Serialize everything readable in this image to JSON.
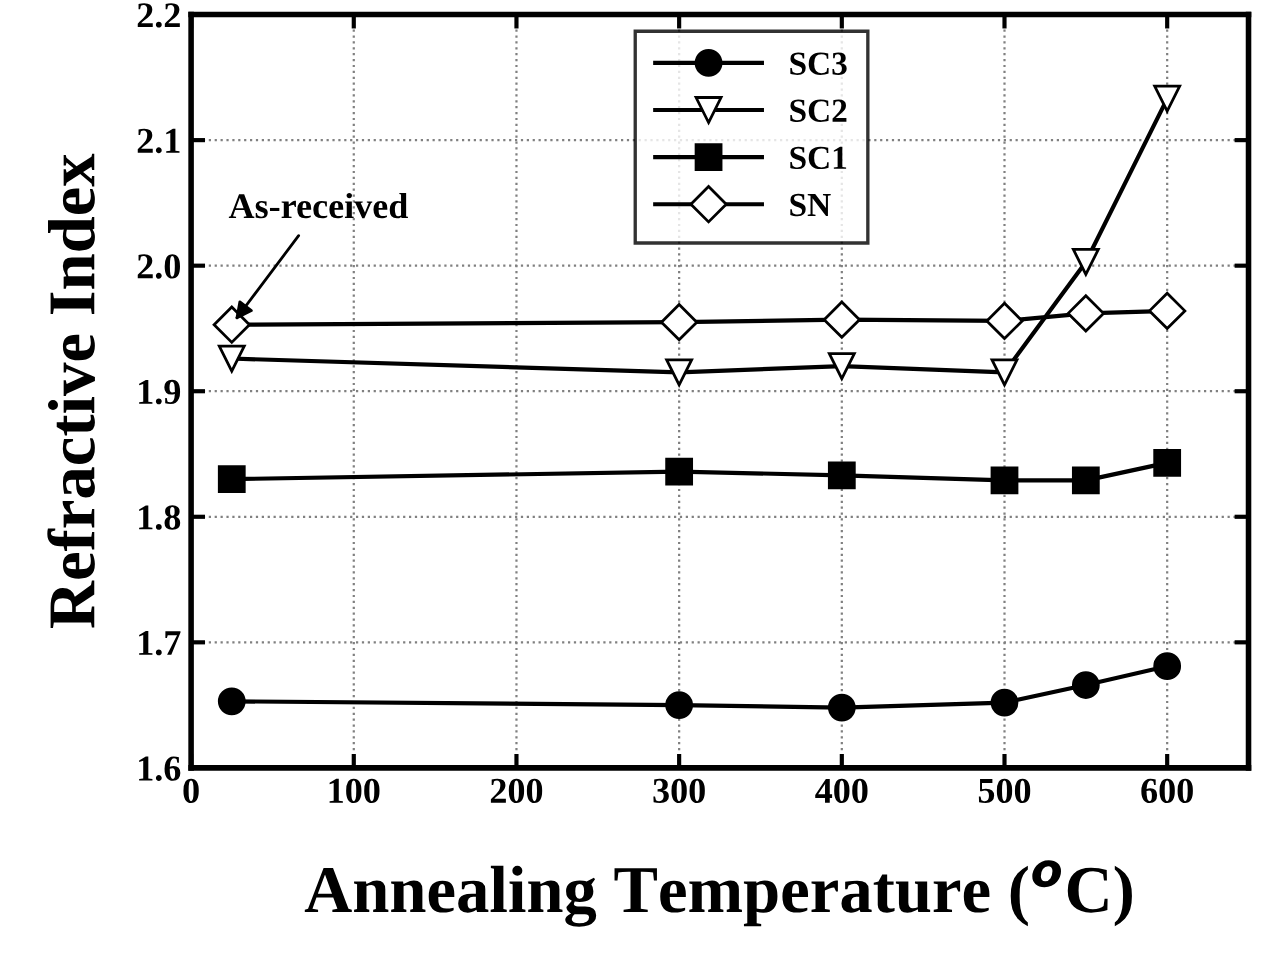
{
  "chart_data": {
    "type": "line",
    "xlabel": "Annealing Temperature ($^{o}$C)",
    "ylabel": "Refractive Index",
    "xlim": [
      0,
      650
    ],
    "xticks": [
      0,
      100,
      200,
      300,
      400,
      500,
      600
    ],
    "ylim": [
      1.6,
      2.2
    ],
    "yticks": [
      1.6,
      1.7,
      1.8,
      1.9,
      {
        "value": 2,
        "label": "2.0"
      },
      2.1,
      2.2
    ],
    "x": [
      25,
      300,
      400,
      500,
      550,
      600
    ],
    "grid": true,
    "legend": "top",
    "line_style": "solid",
    "annotations": [
      {
        "text": "As-received",
        "x": 25,
        "y": 1.953
      }
    ],
    "series": [
      {
        "name": "SC3",
        "color": "#000000",
        "marker": "circle",
        "values": [
          1.653,
          1.65,
          1.648,
          1.652,
          1.666,
          1.681
        ]
      },
      {
        "name": "SC2",
        "color": "#000000",
        "marker": "triangle",
        "values": [
          1.926,
          1.915,
          1.92,
          1.915,
          2.003,
          2.133
        ]
      },
      {
        "name": "SC1",
        "color": "#000000",
        "marker": "square",
        "values": [
          1.83,
          1.836,
          1.833,
          1.829,
          1.829,
          1.843
        ]
      },
      {
        "name": "SN",
        "color": "#000000",
        "marker": "diamond",
        "values": [
          1.953,
          1.955,
          1.957,
          1.956,
          1.962,
          1.964
        ]
      }
    ]
  }
}
